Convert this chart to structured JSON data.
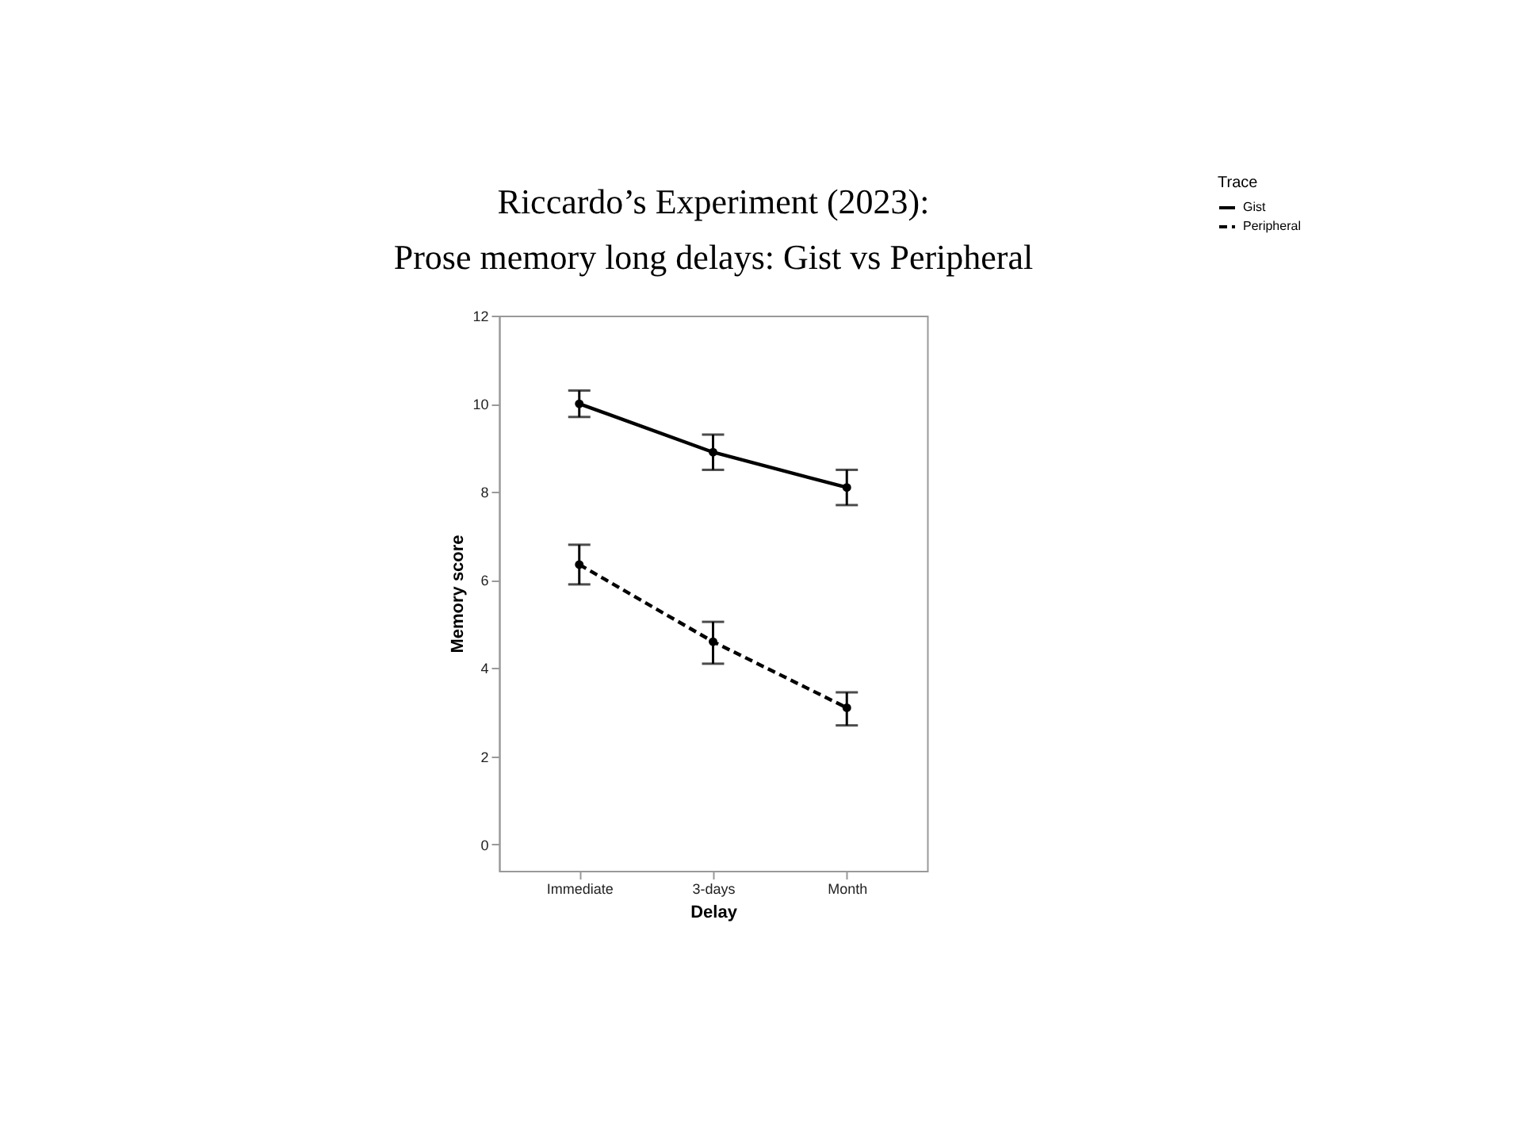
{
  "chart_data": {
    "type": "line",
    "title": "Riccardo’s Experiment (2023):\nProse memory long delays: Gist vs Peripheral",
    "xlabel": "Delay",
    "ylabel": "Memory score",
    "legend_title": "Trace",
    "legend": "right",
    "marker": "circle",
    "grid": false,
    "categories": [
      "Immediate",
      "3-days",
      "Month"
    ],
    "ylim": [
      -0.6,
      12
    ],
    "yticks": [
      0,
      2,
      4,
      6,
      8,
      10,
      12
    ],
    "series": [
      {
        "name": "Gist",
        "color": "#000000",
        "line_style": "solid",
        "values": [
          10.0,
          8.9,
          8.1
        ],
        "errors": [
          [
            9.7,
            10.3
          ],
          [
            8.5,
            9.3
          ],
          [
            7.7,
            8.5
          ]
        ]
      },
      {
        "name": "Peripheral",
        "color": "#000000",
        "line_style": "dashed",
        "values": [
          6.35,
          4.6,
          3.1
        ],
        "errors": [
          [
            5.9,
            6.8
          ],
          [
            4.1,
            5.05
          ],
          [
            2.7,
            3.45
          ]
        ]
      }
    ]
  }
}
